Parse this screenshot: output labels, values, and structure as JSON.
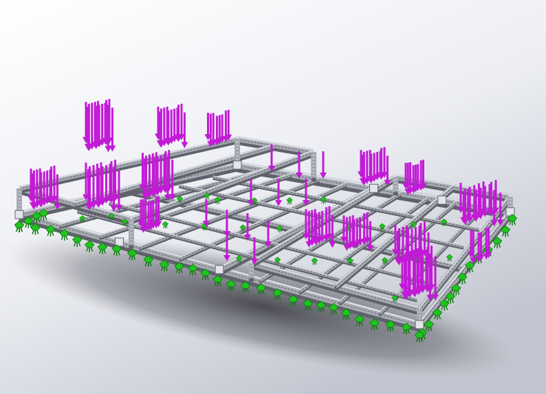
{
  "viewport": {
    "name": "cad-graphics-area",
    "background_top": "#ffffff",
    "background_bottom": "#c9ccd6"
  },
  "model": {
    "name": "aluminum-profile-frame-assembly",
    "frame_color": "#a8abb3",
    "frame_dark": "#5f626a",
    "frame_light": "#e3e5ea"
  },
  "loads": {
    "name": "force-arrows",
    "color": "#c21bd6",
    "icon": "down-arrow-icon"
  },
  "fixtures": {
    "name": "fixed-geometry-symbols",
    "color": "#1fc41f",
    "icon": "fixture-icon"
  }
}
